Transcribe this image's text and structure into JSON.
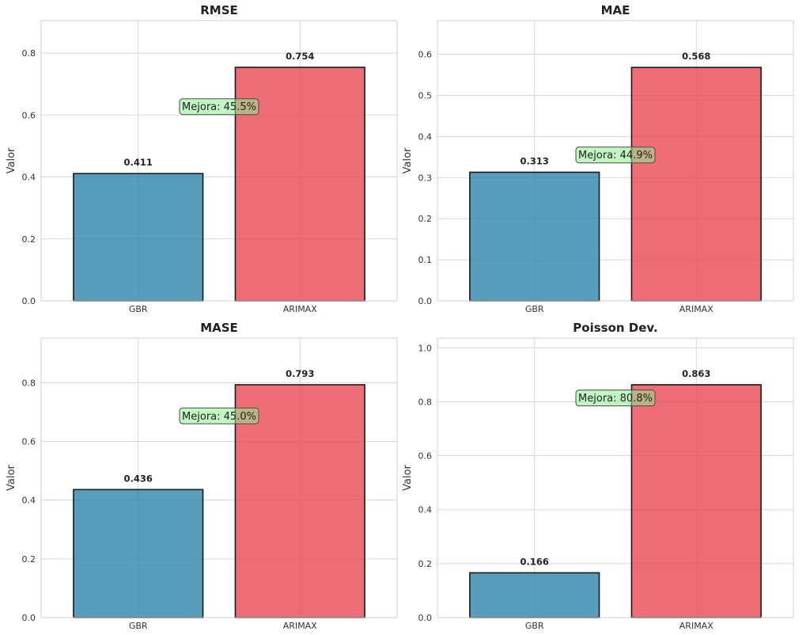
{
  "chart_data": [
    {
      "type": "bar",
      "title": "RMSE",
      "ylabel": "Valor",
      "categories": [
        "GBR",
        "ARIMAX"
      ],
      "values": [
        0.411,
        0.754
      ],
      "value_labels": [
        "0.411",
        "0.754"
      ],
      "colors": [
        "#2e86ab",
        "#e84855"
      ],
      "ylim": [
        0,
        0.905
      ],
      "yticks": [
        0.0,
        0.2,
        0.4,
        0.6,
        0.8
      ],
      "ytick_labels": [
        "0.0",
        "0.2",
        "0.4",
        "0.6",
        "0.8"
      ],
      "annotation": {
        "text": "Mejora: 45.5%",
        "y": 0.627
      },
      "grid": true
    },
    {
      "type": "bar",
      "title": "MAE",
      "ylabel": "Valor",
      "categories": [
        "GBR",
        "ARIMAX"
      ],
      "values": [
        0.313,
        0.568
      ],
      "value_labels": [
        "0.313",
        "0.568"
      ],
      "colors": [
        "#2e86ab",
        "#e84855"
      ],
      "ylim": [
        0,
        0.682
      ],
      "yticks": [
        0.0,
        0.1,
        0.2,
        0.3,
        0.4,
        0.5,
        0.6
      ],
      "ytick_labels": [
        "0.0",
        "0.1",
        "0.2",
        "0.3",
        "0.4",
        "0.5",
        "0.6"
      ],
      "annotation": {
        "text": "Mejora: 44.9%",
        "y": 0.355
      },
      "grid": true
    },
    {
      "type": "bar",
      "title": "MASE",
      "ylabel": "Valor",
      "categories": [
        "GBR",
        "ARIMAX"
      ],
      "values": [
        0.436,
        0.793
      ],
      "value_labels": [
        "0.436",
        "0.793"
      ],
      "colors": [
        "#2e86ab",
        "#e84855"
      ],
      "ylim": [
        0,
        0.952
      ],
      "yticks": [
        0.0,
        0.2,
        0.4,
        0.6,
        0.8
      ],
      "ytick_labels": [
        "0.0",
        "0.2",
        "0.4",
        "0.6",
        "0.8"
      ],
      "annotation": {
        "text": "Mejora: 45.0%",
        "y": 0.687
      },
      "grid": true
    },
    {
      "type": "bar",
      "title": "Poisson Dev.",
      "ylabel": "Valor",
      "categories": [
        "GBR",
        "ARIMAX"
      ],
      "values": [
        0.166,
        0.863
      ],
      "value_labels": [
        "0.166",
        "0.863"
      ],
      "colors": [
        "#2e86ab",
        "#e84855"
      ],
      "ylim": [
        0,
        1.036
      ],
      "yticks": [
        0.0,
        0.2,
        0.4,
        0.6,
        0.8,
        1.0
      ],
      "ytick_labels": [
        "0.0",
        "0.2",
        "0.4",
        "0.6",
        "0.8",
        "1.0"
      ],
      "annotation": {
        "text": "Mejora: 80.8%",
        "y": 0.814
      },
      "grid": true
    }
  ]
}
